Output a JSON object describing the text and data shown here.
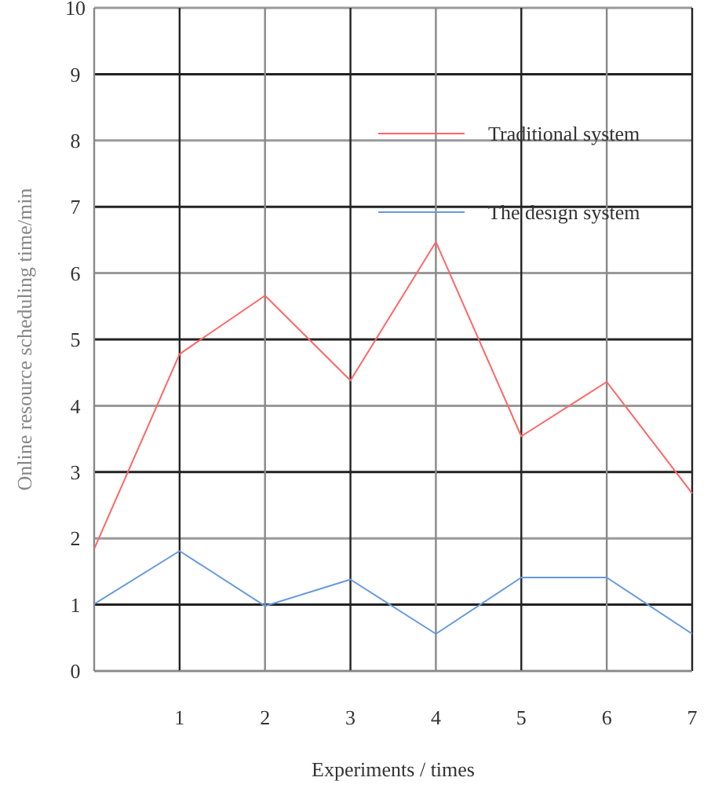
{
  "chart_data": {
    "type": "line",
    "xlabel": "Experiments / times",
    "ylabel": "Online resource scheduling time/min",
    "x": [
      0,
      1,
      2,
      3,
      4,
      5,
      6,
      7
    ],
    "series": [
      {
        "name": "Traditional system",
        "color": "#ff6666",
        "values": [
          1.84,
          4.78,
          5.66,
          4.38,
          6.47,
          3.54,
          4.36,
          2.68
        ]
      },
      {
        "name": "The design system",
        "color": "#6699dd",
        "values": [
          1.01,
          1.81,
          0.98,
          1.38,
          0.56,
          1.41,
          1.41,
          0.56
        ]
      }
    ],
    "xlim": [
      0,
      7
    ],
    "xticks": [
      {
        "value": 0,
        "label": null
      },
      1,
      2,
      3,
      4,
      5,
      6,
      7
    ],
    "ylim": [
      0,
      10
    ],
    "yticks": [
      0,
      1,
      2,
      3,
      4,
      5,
      6,
      7,
      8,
      9,
      10
    ],
    "grid": true,
    "legend": "top right",
    "marker": "none",
    "line_style": "solid"
  }
}
